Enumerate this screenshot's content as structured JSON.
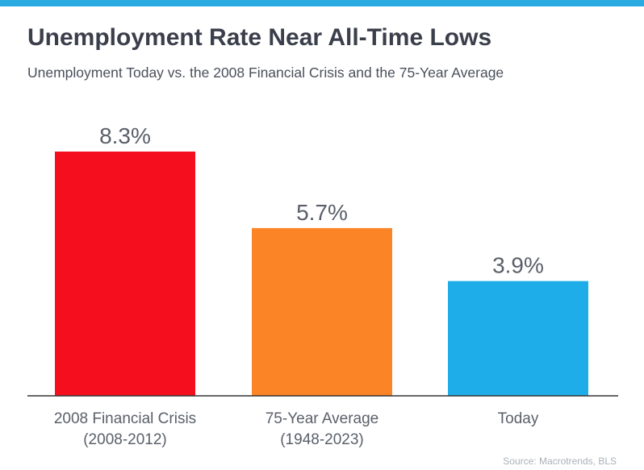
{
  "header": {
    "title": "Unemployment Rate Near All-Time Lows",
    "subtitle": "Unemployment Today vs. the 2008 Financial Crisis and the 75-Year Average"
  },
  "footer": {
    "source": "Source: Macrotrends, BLS"
  },
  "colors": {
    "top_bar": "#29abe2",
    "axis": "#333333",
    "label": "#5a5f69"
  },
  "chart_data": {
    "type": "bar",
    "title": "Unemployment Rate Near All-Time Lows",
    "subtitle": "Unemployment Today vs. the 2008 Financial Crisis and the 75-Year Average",
    "categories": [
      [
        "2008 Financial Crisis",
        "(2008-2012)"
      ],
      [
        "75-Year Average",
        "(1948-2023)"
      ],
      [
        "Today"
      ]
    ],
    "values": [
      8.3,
      5.7,
      3.9
    ],
    "value_labels": [
      "8.3%",
      "5.7%",
      "3.9%"
    ],
    "bar_colors": [
      "#f50f1e",
      "#fb8526",
      "#1fade9"
    ],
    "xlabel": "",
    "ylabel": "",
    "ylim": [
      0,
      8.3
    ],
    "grid": false,
    "legend": "none"
  }
}
